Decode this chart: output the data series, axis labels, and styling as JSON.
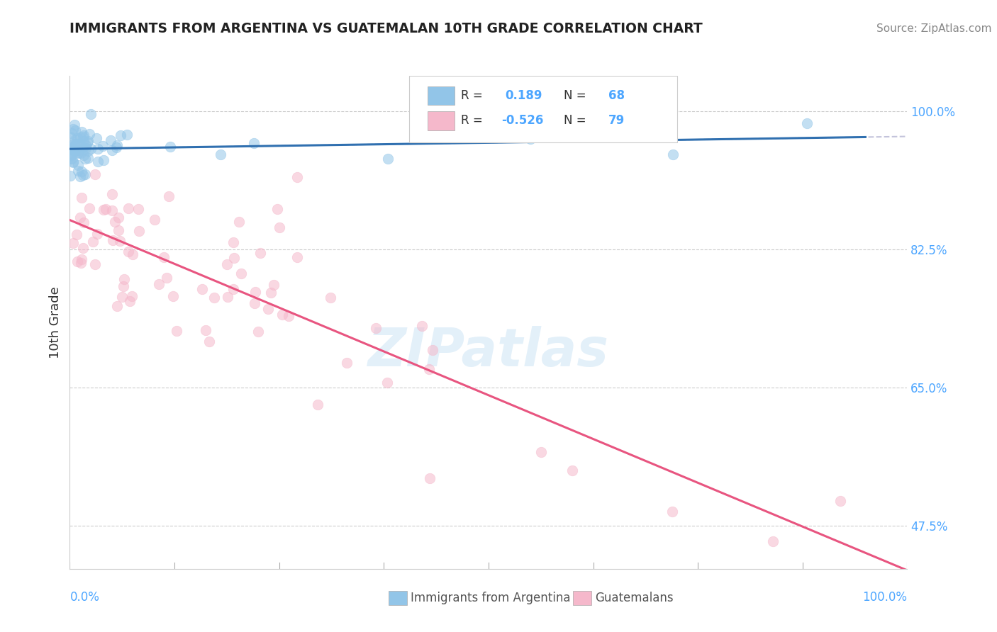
{
  "title": "IMMIGRANTS FROM ARGENTINA VS GUATEMALAN 10TH GRADE CORRELATION CHART",
  "source": "Source: ZipAtlas.com",
  "ylabel": "10th Grade",
  "y_ticks": [
    47.5,
    65.0,
    82.5,
    100.0
  ],
  "x_range": [
    0.0,
    1.0
  ],
  "y_range": [
    0.42,
    1.045
  ],
  "argentina_R": 0.189,
  "argentina_N": 68,
  "guatemalan_R": -0.526,
  "guatemalan_N": 79,
  "argentina_color": "#92c5e8",
  "guatemalan_color": "#f5b8cb",
  "argentina_line_color": "#3070b0",
  "guatemalan_line_color": "#e85580",
  "watermark": "ZIPatlas"
}
